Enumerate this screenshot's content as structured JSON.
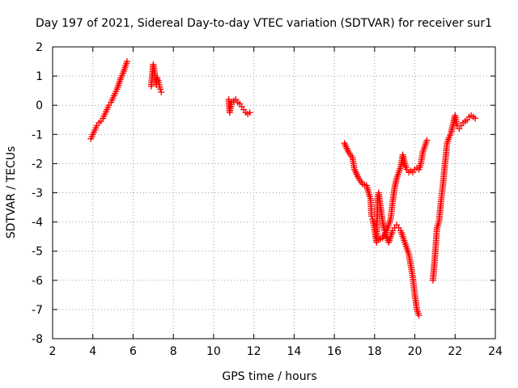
{
  "chart_data": {
    "type": "scatter",
    "title": "Day 197 of 2021, Sidereal Day-to-day VTEC variation (SDTVAR) for receiver sur1",
    "xlabel": "GPS time / hours",
    "ylabel": "SDTVAR / TECUs",
    "xlim": [
      2,
      24
    ],
    "ylim": [
      -8,
      2
    ],
    "xticks": [
      2,
      4,
      6,
      8,
      10,
      12,
      14,
      16,
      18,
      20,
      22,
      24
    ],
    "yticks": [
      2,
      1,
      0,
      -1,
      -2,
      -3,
      -4,
      -5,
      -6,
      -7,
      -8
    ],
    "grid": true,
    "marker": "+",
    "marker_color": "#ff0000",
    "series": [
      {
        "name": "sur1",
        "segments": [
          [
            [
              3.9,
              -1.15
            ],
            [
              4.0,
              -1.0
            ],
            [
              4.1,
              -0.85
            ],
            [
              4.2,
              -0.7
            ],
            [
              4.3,
              -0.6
            ],
            [
              4.4,
              -0.55
            ],
            [
              4.5,
              -0.45
            ],
            [
              4.6,
              -0.3
            ],
            [
              4.7,
              -0.15
            ],
            [
              4.8,
              0.0
            ],
            [
              4.9,
              0.1
            ],
            [
              5.0,
              0.25
            ],
            [
              5.1,
              0.4
            ],
            [
              5.2,
              0.55
            ],
            [
              5.3,
              0.75
            ],
            [
              5.4,
              0.95
            ],
            [
              5.5,
              1.1
            ],
            [
              5.6,
              1.3
            ],
            [
              5.7,
              1.5
            ]
          ],
          [
            [
              6.9,
              0.65
            ],
            [
              7.0,
              1.4
            ],
            [
              7.05,
              1.2
            ],
            [
              7.1,
              0.95
            ],
            [
              7.15,
              0.7
            ],
            [
              7.2,
              0.95
            ],
            [
              7.25,
              0.85
            ],
            [
              7.3,
              0.7
            ],
            [
              7.35,
              0.55
            ],
            [
              7.4,
              0.45
            ]
          ],
          [
            [
              10.75,
              0.2
            ],
            [
              10.8,
              -0.25
            ],
            [
              10.9,
              0.1
            ],
            [
              11.0,
              0.15
            ],
            [
              11.1,
              0.2
            ],
            [
              11.2,
              0.1
            ],
            [
              11.3,
              0.05
            ],
            [
              11.4,
              -0.05
            ],
            [
              11.5,
              -0.15
            ],
            [
              11.6,
              -0.25
            ],
            [
              11.7,
              -0.3
            ],
            [
              11.8,
              -0.25
            ]
          ],
          [
            [
              16.5,
              -1.3
            ],
            [
              16.7,
              -1.6
            ],
            [
              16.9,
              -1.8
            ],
            [
              17.0,
              -2.2
            ],
            [
              17.2,
              -2.5
            ],
            [
              17.4,
              -2.7
            ],
            [
              17.6,
              -2.75
            ],
            [
              17.7,
              -3.0
            ],
            [
              17.8,
              -3.2
            ],
            [
              17.85,
              -3.8
            ],
            [
              17.9,
              -3.9
            ],
            [
              18.0,
              -4.25
            ],
            [
              18.05,
              -4.5
            ],
            [
              18.1,
              -4.7
            ],
            [
              18.15,
              -3.2
            ],
            [
              18.2,
              -3.0
            ],
            [
              18.3,
              -3.5
            ],
            [
              18.4,
              -4.0
            ],
            [
              18.5,
              -4.3
            ],
            [
              18.6,
              -4.5
            ],
            [
              18.7,
              -4.7
            ],
            [
              18.8,
              -4.5
            ],
            [
              18.9,
              -4.3
            ],
            [
              19.0,
              -4.2
            ],
            [
              19.1,
              -4.1
            ],
            [
              19.2,
              -4.2
            ],
            [
              19.3,
              -4.3
            ],
            [
              19.4,
              -4.5
            ],
            [
              19.5,
              -4.7
            ],
            [
              19.6,
              -4.9
            ],
            [
              19.7,
              -5.1
            ],
            [
              19.8,
              -5.5
            ],
            [
              19.9,
              -5.9
            ],
            [
              20.0,
              -6.5
            ],
            [
              20.1,
              -7.0
            ],
            [
              20.2,
              -7.2
            ]
          ],
          [
            [
              18.2,
              -4.6
            ],
            [
              18.4,
              -4.55
            ],
            [
              18.6,
              -4.3
            ],
            [
              18.8,
              -3.9
            ],
            [
              18.9,
              -3.3
            ],
            [
              19.0,
              -2.8
            ],
            [
              19.1,
              -2.5
            ],
            [
              19.2,
              -2.3
            ],
            [
              19.3,
              -2.1
            ],
            [
              19.4,
              -1.7
            ],
            [
              19.5,
              -2.0
            ],
            [
              19.6,
              -2.2
            ],
            [
              19.7,
              -2.3
            ],
            [
              19.8,
              -2.25
            ],
            [
              19.9,
              -2.3
            ],
            [
              20.0,
              -2.2
            ],
            [
              20.1,
              -2.15
            ],
            [
              20.2,
              -2.2
            ],
            [
              20.3,
              -2.0
            ],
            [
              20.4,
              -1.6
            ],
            [
              20.5,
              -1.4
            ],
            [
              20.6,
              -1.2
            ]
          ],
          [
            [
              20.9,
              -6.0
            ],
            [
              21.0,
              -5.2
            ],
            [
              21.1,
              -4.2
            ],
            [
              21.2,
              -4.0
            ],
            [
              21.3,
              -3.3
            ],
            [
              21.4,
              -2.7
            ],
            [
              21.5,
              -2.0
            ],
            [
              21.6,
              -1.3
            ],
            [
              21.7,
              -1.1
            ],
            [
              21.8,
              -0.95
            ],
            [
              22.0,
              -0.35
            ],
            [
              22.1,
              -0.7
            ],
            [
              22.2,
              -0.8
            ],
            [
              22.3,
              -0.7
            ],
            [
              22.4,
              -0.6
            ],
            [
              22.5,
              -0.55
            ],
            [
              22.6,
              -0.5
            ],
            [
              22.7,
              -0.4
            ],
            [
              22.8,
              -0.35
            ],
            [
              22.9,
              -0.4
            ],
            [
              23.0,
              -0.45
            ]
          ]
        ]
      }
    ]
  }
}
